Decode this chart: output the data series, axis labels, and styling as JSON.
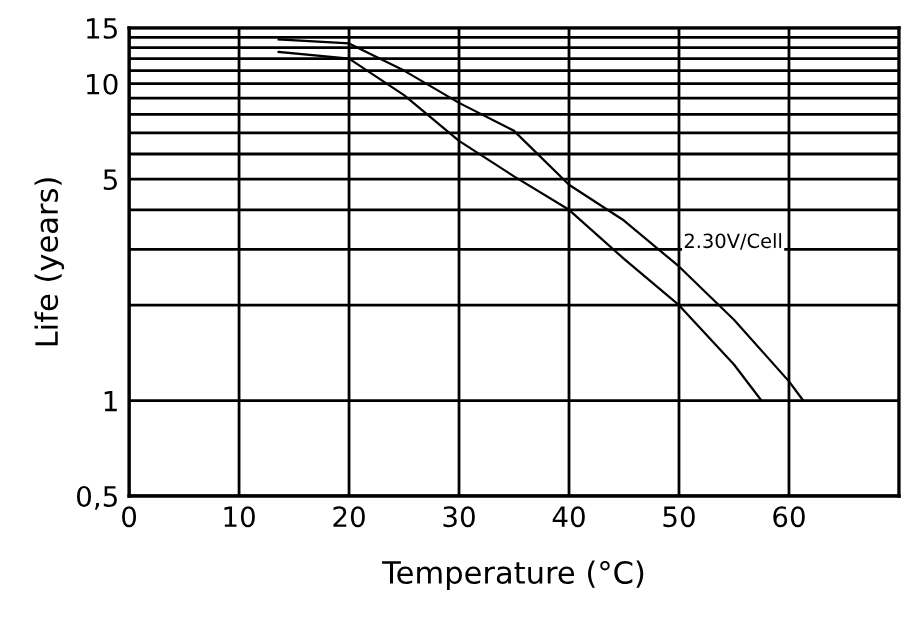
{
  "chart_data": {
    "type": "line",
    "xlabel": "Temperature (°C)",
    "ylabel": "Life (years)",
    "log": "y",
    "grid": true,
    "legend": false,
    "marker": "none",
    "line_style": "solid",
    "xlim": [
      0,
      70
    ],
    "xticks": [
      0,
      10,
      20,
      30,
      40,
      50,
      60
    ],
    "ylim": [
      0.5,
      15
    ],
    "yticks": [
      {
        "value": 0.5,
        "label": "0,5"
      },
      1,
      {
        "value": 2,
        "label": null
      },
      {
        "value": 3,
        "label": null
      },
      {
        "value": 4,
        "label": null
      },
      5,
      {
        "value": 6,
        "label": null
      },
      {
        "value": 7,
        "label": null
      },
      {
        "value": 8,
        "label": null
      },
      {
        "value": 9,
        "label": null
      },
      10,
      {
        "value": 11,
        "label": null
      },
      {
        "value": 12,
        "label": null
      },
      {
        "value": 13,
        "label": null
      },
      {
        "value": 14,
        "label": null
      },
      15
    ],
    "series": [
      {
        "color": "#000000",
        "x": [
          13.6,
          20,
          25,
          30,
          35,
          40,
          45,
          50,
          55,
          60,
          61.3
        ],
        "values": [
          13.8,
          13.4,
          11,
          8.7,
          7.1,
          4.8,
          3.7,
          2.65,
          1.8,
          1.15,
          1.0
        ]
      },
      {
        "color": "#000000",
        "x": [
          13.6,
          20,
          25,
          30,
          35,
          40,
          45,
          50,
          55,
          57.5
        ],
        "values": [
          12.6,
          12.0,
          9.2,
          6.6,
          5.1,
          4.0,
          2.8,
          2.0,
          1.3,
          1.0
        ]
      }
    ],
    "annotations": [
      "2.30V/Cell"
    ]
  }
}
